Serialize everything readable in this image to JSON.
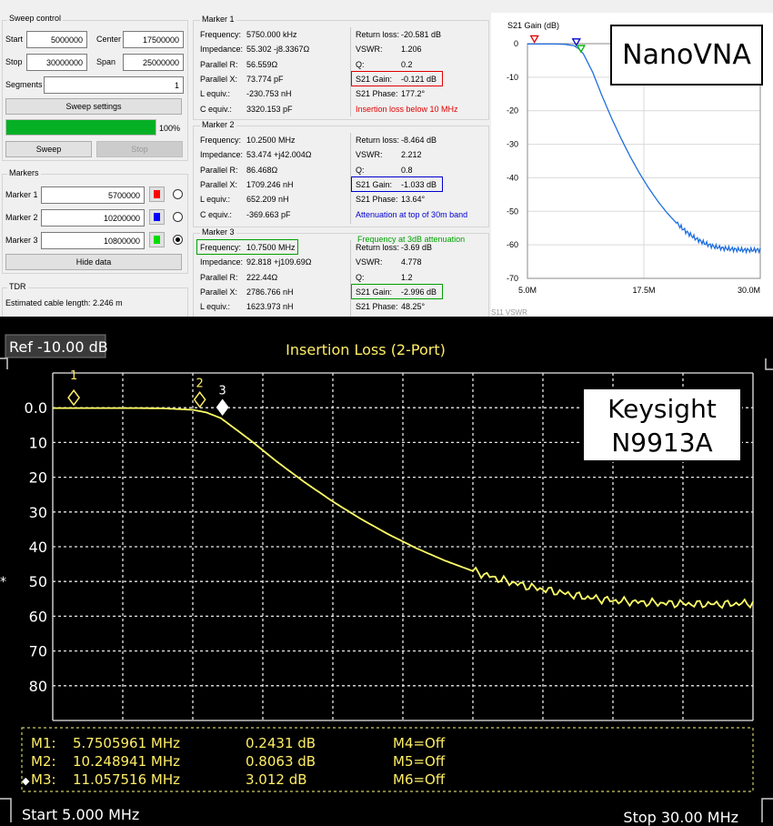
{
  "nanovna": {
    "sweep_control": {
      "title": "Sweep control",
      "start_label": "Start",
      "start_value": "5000000",
      "center_label": "Center",
      "center_value": "17500000",
      "stop_label": "Stop",
      "stop_value": "30000000",
      "span_label": "Span",
      "span_value": "25000000",
      "segments_label": "Segments",
      "segments_value": "1",
      "settings_button": "Sweep settings",
      "progress": 100,
      "progress_label": "100%",
      "sweep_button": "Sweep",
      "stop_button": "Stop"
    },
    "markers": {
      "title": "Markers",
      "items": [
        {
          "label": "Marker 1",
          "value": "5700000",
          "color": "#ff0000",
          "selected": false
        },
        {
          "label": "Marker 2",
          "value": "10200000",
          "color": "#0000ff",
          "selected": false
        },
        {
          "label": "Marker 3",
          "value": "10800000",
          "color": "#00dd00",
          "selected": true
        }
      ],
      "hide_button": "Hide data"
    },
    "tdr": {
      "title": "TDR",
      "cable_length": "Estimated cable length:  2.246 m"
    },
    "marker_panels": [
      {
        "title": "Marker 1",
        "left": [
          {
            "k": "Frequency:",
            "v": "5750.000 kHz"
          },
          {
            "k": "Impedance:",
            "v": "55.302 -j8.3367Ω"
          },
          {
            "k": "Parallel R:",
            "v": "56.559Ω"
          },
          {
            "k": "Parallel X:",
            "v": "73.774 pF"
          },
          {
            "k": "L equiv.:",
            "v": "-230.753 nH"
          },
          {
            "k": "C equiv.:",
            "v": "3320.153 pF"
          }
        ],
        "right": [
          {
            "k": "Return loss:",
            "v": "-20.581 dB"
          },
          {
            "k": "VSWR:",
            "v": "1.206"
          },
          {
            "k": "Q:",
            "v": "0.2"
          },
          {
            "k": "S21 Gain:",
            "v": "-0.121 dB"
          },
          {
            "k": "S21 Phase:",
            "v": "177.2°"
          }
        ],
        "note": "Insertion loss below 10 MHz",
        "note_color": "#e00000"
      },
      {
        "title": "Marker 2",
        "left": [
          {
            "k": "Frequency:",
            "v": "10.2500 MHz"
          },
          {
            "k": "Impedance:",
            "v": "53.474 +j42.004Ω"
          },
          {
            "k": "Parallel R:",
            "v": "86.468Ω"
          },
          {
            "k": "Parallel X:",
            "v": "1709.246 nH"
          },
          {
            "k": "L equiv.:",
            "v": "652.209 nH"
          },
          {
            "k": "C equiv.:",
            "v": "-369.663 pF"
          }
        ],
        "right": [
          {
            "k": "Return loss:",
            "v": "-8.464 dB"
          },
          {
            "k": "VSWR:",
            "v": "2.212"
          },
          {
            "k": "Q:",
            "v": "0.8"
          },
          {
            "k": "S21 Gain:",
            "v": "-1.033 dB"
          },
          {
            "k": "S21 Phase:",
            "v": "13.64°"
          }
        ],
        "note": "Attenuation at top of 30m band",
        "note_color": "#0000d0"
      },
      {
        "title": "Marker 3",
        "left": [
          {
            "k": "Frequency:",
            "v": "10.7500 MHz"
          },
          {
            "k": "Impedance:",
            "v": "92.818 +j109.69Ω"
          },
          {
            "k": "Parallel R:",
            "v": "222.44Ω"
          },
          {
            "k": "Parallel X:",
            "v": "2786.766 nH"
          },
          {
            "k": "L equiv.:",
            "v": "1623.973 nH"
          }
        ],
        "right": [
          {
            "k": "Return loss:",
            "v": "-3.69 dB"
          },
          {
            "k": "VSWR:",
            "v": "4.778"
          },
          {
            "k": "Q:",
            "v": "1.2"
          },
          {
            "k": "S21 Gain:",
            "v": "-2.996 dB"
          },
          {
            "k": "S21 Phase:",
            "v": "48.25°"
          }
        ],
        "note": "Frequency at 3dB attenuation",
        "note_color": "#00a000"
      }
    ],
    "chart_data": {
      "type": "line",
      "title": "S21 Gain (dB)",
      "x_unit": "MHz",
      "xlim": [
        5,
        30
      ],
      "ylim": [
        -70,
        0
      ],
      "x_ticks": [
        "5.0M",
        "17.5M",
        "30.0M"
      ],
      "y_ticks": [
        "0",
        "-10",
        "-20",
        "-30",
        "-40",
        "-50",
        "-60",
        "-70"
      ],
      "line_color": "#1f6fe0",
      "series": [
        {
          "x": [
            5,
            6,
            7,
            8,
            9,
            10,
            10.5,
            11,
            12,
            13,
            14,
            15,
            16,
            17,
            18,
            19,
            20,
            21,
            22,
            23,
            24,
            25,
            26,
            27,
            28,
            29,
            30
          ],
          "y": [
            -0.1,
            -0.1,
            -0.1,
            -0.1,
            -0.2,
            -0.6,
            -1.5,
            -3.0,
            -8.5,
            -15.5,
            -22,
            -28,
            -33.5,
            -38.5,
            -43,
            -47,
            -50.5,
            -53.5,
            -56,
            -58,
            -59.5,
            -60.5,
            -61,
            -61.3,
            -61.5,
            -61.6,
            -61.5
          ]
        }
      ],
      "markers": [
        {
          "label": "1",
          "x": 5.75,
          "y": -0.121,
          "color": "#e00000"
        },
        {
          "label": "2",
          "x": 10.25,
          "y": -1.033,
          "color": "#0000d0"
        },
        {
          "label": "3",
          "x": 10.75,
          "y": -2.996,
          "color": "#00b000"
        }
      ],
      "footer": "S11 VSWR"
    }
  },
  "keysight": {
    "ref": "Ref -10.00 dB",
    "title": "Insertion Loss (2-Port)",
    "start": "Start 5.000 MHz",
    "stop": "Stop 30.00 MHz",
    "readouts": [
      {
        "name": "M1:",
        "freq": "5.7505961 MHz",
        "val": "0.2431 dB",
        "other": "M4=Off",
        "active": false
      },
      {
        "name": "M2:",
        "freq": "10.248941 MHz",
        "val": "0.8063 dB",
        "other": "M5=Off",
        "active": false
      },
      {
        "name": "M3:",
        "freq": "11.057516 MHz",
        "val": "3.012 dB",
        "other": "M6=Off",
        "active": true
      }
    ],
    "chart_data": {
      "type": "line",
      "title": "Insertion Loss (2-Port)",
      "x_unit": "MHz",
      "xlim": [
        5,
        30
      ],
      "ylim": [
        -10,
        90
      ],
      "y_inverted": true,
      "y_ticks": [
        "0.0",
        "10",
        "20",
        "30",
        "40",
        "50",
        "60",
        "70",
        "80"
      ],
      "grid": true,
      "trace_color": "#ffff66",
      "series": [
        {
          "x": [
            5,
            6,
            7,
            8,
            9,
            10,
            10.5,
            11,
            12,
            13,
            14,
            15,
            16,
            17,
            18,
            19,
            20,
            21,
            22,
            23,
            24,
            25,
            26,
            27,
            28,
            29,
            30
          ],
          "y": [
            0.1,
            0.1,
            0.1,
            0.1,
            0.2,
            0.6,
            1.4,
            3.0,
            9,
            15.5,
            21.5,
            27,
            32,
            36.5,
            40.5,
            44,
            47,
            49.5,
            51.5,
            53,
            54.5,
            55.5,
            56,
            56.3,
            56.5,
            56.5,
            56.2
          ]
        }
      ],
      "markers": [
        {
          "label": "1",
          "x": 5.75,
          "y": 0.2431
        },
        {
          "label": "2",
          "x": 10.25,
          "y": 0.8063
        },
        {
          "label": "3",
          "x": 11.06,
          "y": 3.012
        }
      ]
    }
  },
  "tags": {
    "top": "NanoVNA",
    "bottom_line1": "Keysight",
    "bottom_line2": "N9913A"
  }
}
